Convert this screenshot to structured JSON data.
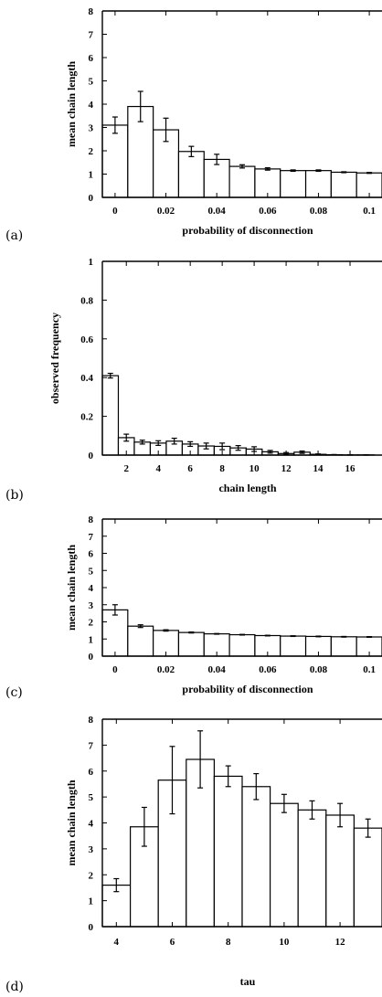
{
  "chart_data": [
    {
      "panel_label": "(a)",
      "type": "bar",
      "xlabel": "probability of disconnection",
      "ylabel": "mean chain length",
      "ylim": [
        0,
        8
      ],
      "yticks": [
        "0",
        "1",
        "2",
        "3",
        "4",
        "5",
        "6",
        "7",
        "8"
      ],
      "xlim": [
        -0.005,
        0.105
      ],
      "xticks": [
        {
          "v": 0,
          "label": "0"
        },
        {
          "v": 0.02,
          "label": "0.02"
        },
        {
          "v": 0.04,
          "label": "0.04"
        },
        {
          "v": 0.06,
          "label": "0.06"
        },
        {
          "v": 0.08,
          "label": "0.08"
        },
        {
          "v": 0.1,
          "label": "0.1"
        }
      ],
      "bar_width": 0.01,
      "x": [
        0,
        0.01,
        0.02,
        0.03,
        0.04,
        0.05,
        0.06,
        0.07,
        0.08,
        0.09,
        0.1
      ],
      "values": [
        3.1,
        3.9,
        2.9,
        1.97,
        1.63,
        1.33,
        1.22,
        1.15,
        1.15,
        1.08,
        1.05
      ],
      "errors": [
        0.35,
        0.65,
        0.5,
        0.22,
        0.22,
        0.07,
        0.05,
        0.03,
        0.03,
        0.02,
        0.02
      ]
    },
    {
      "panel_label": "(b)",
      "type": "bar",
      "xlabel": "chain length",
      "ylabel": "observed frequency",
      "ylim": [
        0,
        1
      ],
      "yticks": [
        "0",
        "0.2",
        "0.4",
        "0.6",
        "0.8",
        "1"
      ],
      "xlim": [
        0.5,
        18
      ],
      "xticks": [
        {
          "v": 2,
          "label": "2"
        },
        {
          "v": 4,
          "label": "4"
        },
        {
          "v": 6,
          "label": "6"
        },
        {
          "v": 8,
          "label": "8"
        },
        {
          "v": 10,
          "label": "10"
        },
        {
          "v": 12,
          "label": "12"
        },
        {
          "v": 14,
          "label": "14"
        },
        {
          "v": 16,
          "label": "16"
        }
      ],
      "bar_width": 1,
      "x": [
        1,
        2,
        3,
        4,
        5,
        6,
        7,
        8,
        9,
        10,
        11,
        12,
        13,
        14,
        15,
        16,
        17
      ],
      "values": [
        0.41,
        0.09,
        0.067,
        0.062,
        0.072,
        0.057,
        0.047,
        0.045,
        0.037,
        0.031,
        0.017,
        0.008,
        0.015,
        0.004,
        0.002,
        0.001,
        0.001
      ],
      "errors": [
        0.012,
        0.018,
        0.01,
        0.012,
        0.015,
        0.012,
        0.015,
        0.017,
        0.012,
        0.012,
        0.007,
        0.005,
        0.006,
        0.002,
        0.001,
        0.001,
        0.001
      ]
    },
    {
      "panel_label": "(c)",
      "type": "bar",
      "xlabel": "probability of disconnection",
      "ylabel": "mean chain length",
      "ylim": [
        0,
        8
      ],
      "yticks": [
        "0",
        "1",
        "2",
        "3",
        "4",
        "5",
        "6",
        "7",
        "8"
      ],
      "xlim": [
        -0.005,
        0.105
      ],
      "xticks": [
        {
          "v": 0,
          "label": "0"
        },
        {
          "v": 0.02,
          "label": "0.02"
        },
        {
          "v": 0.04,
          "label": "0.04"
        },
        {
          "v": 0.06,
          "label": "0.06"
        },
        {
          "v": 0.08,
          "label": "0.08"
        },
        {
          "v": 0.1,
          "label": "0.1"
        }
      ],
      "bar_width": 0.01,
      "x": [
        0,
        0.01,
        0.02,
        0.03,
        0.04,
        0.05,
        0.06,
        0.07,
        0.08,
        0.09,
        0.1
      ],
      "values": [
        2.7,
        1.75,
        1.5,
        1.38,
        1.3,
        1.25,
        1.2,
        1.17,
        1.15,
        1.13,
        1.12
      ],
      "errors": [
        0.3,
        0.08,
        0.04,
        0.03,
        0.02,
        0.02,
        0.02,
        0.02,
        0.02,
        0.02,
        0.02
      ]
    },
    {
      "panel_label": "(d)",
      "type": "bar",
      "xlabel": "tau",
      "ylabel": "mean chain length",
      "ylim": [
        0,
        8
      ],
      "yticks": [
        "0",
        "1",
        "2",
        "3",
        "4",
        "5",
        "6",
        "7",
        "8"
      ],
      "xlim": [
        3.5,
        13.5
      ],
      "xticks": [
        {
          "v": 4,
          "label": "4"
        },
        {
          "v": 6,
          "label": "6"
        },
        {
          "v": 8,
          "label": "8"
        },
        {
          "v": 10,
          "label": "10"
        },
        {
          "v": 12,
          "label": "12"
        }
      ],
      "bar_width": 1,
      "x": [
        4,
        5,
        6,
        7,
        8,
        9,
        10,
        11,
        12,
        13
      ],
      "values": [
        1.6,
        3.85,
        5.65,
        6.45,
        5.8,
        5.4,
        4.75,
        4.5,
        4.3,
        3.8
      ],
      "errors": [
        0.25,
        0.75,
        1.3,
        1.1,
        0.4,
        0.5,
        0.35,
        0.35,
        0.45,
        0.35
      ]
    }
  ]
}
